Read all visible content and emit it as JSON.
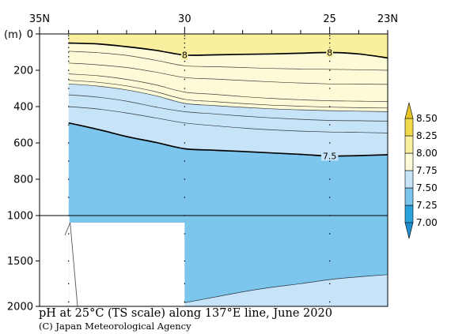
{
  "caption": {
    "title": "pH at 25°C (TS scale) along 137°E line, June 2020",
    "credit": "(C) Japan Meteorological Agency"
  },
  "chart_data": {
    "type": "contour",
    "title": "pH at 25°C (TS scale) along 137°E line, June 2020",
    "x_axis": {
      "quantity": "latitude",
      "range": [
        "35N",
        "23N"
      ],
      "range_values": [
        35,
        23
      ],
      "ticks": [
        {
          "label": "35N",
          "value": 35
        },
        {
          "label": "30",
          "value": 30
        },
        {
          "label": "25",
          "value": 25
        },
        {
          "label": "23N",
          "value": 23
        }
      ]
    },
    "y_axis": {
      "unit_label": "(m)",
      "range": [
        0,
        2000
      ],
      "upper_segment": {
        "range": [
          0,
          1000
        ],
        "ticks": [
          0,
          200,
          400,
          600,
          800,
          1000
        ]
      },
      "lower_segment": {
        "range": [
          1000,
          2000
        ],
        "ticks": [
          1500,
          2000
        ]
      }
    },
    "station_latitudes": [
      34,
      30,
      25
    ],
    "contour_interval": 0.05,
    "contours": [
      {
        "level": 8.0,
        "label": "8",
        "bold": true,
        "points": [
          [
            34,
            50
          ],
          [
            33,
            55
          ],
          [
            32,
            70
          ],
          [
            31,
            90
          ],
          [
            30,
            116
          ],
          [
            29,
            115
          ],
          [
            28,
            112
          ],
          [
            27,
            110
          ],
          [
            26,
            106
          ],
          [
            25,
            102
          ],
          [
            24,
            110
          ],
          [
            23,
            132
          ]
        ]
      },
      {
        "level": 7.95,
        "bold": false,
        "points": [
          [
            34,
            95
          ],
          [
            33,
            103
          ],
          [
            32,
            118
          ],
          [
            31,
            145
          ],
          [
            30,
            175
          ],
          [
            29,
            180
          ],
          [
            28,
            185
          ],
          [
            27,
            190
          ],
          [
            26,
            193
          ],
          [
            25,
            195
          ],
          [
            24,
            197
          ],
          [
            23,
            200
          ]
        ]
      },
      {
        "level": 7.9,
        "bold": false,
        "points": [
          [
            34,
            160
          ],
          [
            33,
            170
          ],
          [
            32,
            185
          ],
          [
            31,
            210
          ],
          [
            30,
            240
          ],
          [
            29,
            248
          ],
          [
            28,
            256
          ],
          [
            27,
            264
          ],
          [
            26,
            270
          ],
          [
            25,
            275
          ],
          [
            24,
            276
          ],
          [
            23,
            278
          ]
        ]
      },
      {
        "level": 7.85,
        "bold": false,
        "points": [
          [
            34,
            220
          ],
          [
            33,
            230
          ],
          [
            32,
            250
          ],
          [
            31,
            280
          ],
          [
            30,
            320
          ],
          [
            29,
            332
          ],
          [
            28,
            345
          ],
          [
            27,
            355
          ],
          [
            26,
            362
          ],
          [
            25,
            368
          ],
          [
            24,
            370
          ],
          [
            23,
            372
          ]
        ]
      },
      {
        "level": 7.8,
        "bold": false,
        "points": [
          [
            34,
            255
          ],
          [
            33,
            266
          ],
          [
            32,
            286
          ],
          [
            31,
            318
          ],
          [
            30,
            360
          ],
          [
            29,
            372
          ],
          [
            28,
            383
          ],
          [
            27,
            392
          ],
          [
            26,
            398
          ],
          [
            25,
            403
          ],
          [
            24,
            406
          ],
          [
            23,
            408
          ]
        ]
      },
      {
        "level": 7.75,
        "bold": false,
        "points": [
          [
            34,
            275
          ],
          [
            33,
            287
          ],
          [
            32,
            308
          ],
          [
            31,
            340
          ],
          [
            30,
            382
          ],
          [
            29,
            394
          ],
          [
            28,
            404
          ],
          [
            27,
            412
          ],
          [
            26,
            418
          ],
          [
            25,
            422
          ],
          [
            24,
            425
          ],
          [
            23,
            428
          ]
        ]
      },
      {
        "level": 7.7,
        "bold": false,
        "points": [
          [
            34,
            335
          ],
          [
            33,
            348
          ],
          [
            32,
            370
          ],
          [
            31,
            402
          ],
          [
            30,
            428
          ],
          [
            29,
            440
          ],
          [
            28,
            452
          ],
          [
            27,
            462
          ],
          [
            26,
            470
          ],
          [
            25,
            476
          ],
          [
            24,
            478
          ],
          [
            23,
            480
          ]
        ]
      },
      {
        "level": 7.65,
        "bold": false,
        "points": [
          [
            34,
            400
          ],
          [
            33,
            413
          ],
          [
            32,
            435
          ],
          [
            31,
            462
          ],
          [
            30,
            490
          ],
          [
            29,
            505
          ],
          [
            28,
            518
          ],
          [
            27,
            528
          ],
          [
            26,
            535
          ],
          [
            25,
            540
          ],
          [
            24,
            542
          ],
          [
            23,
            545
          ]
        ]
      },
      {
        "level": 7.5,
        "label": "7.5",
        "bold": true,
        "points": [
          [
            34,
            490
          ],
          [
            33,
            525
          ],
          [
            32,
            565
          ],
          [
            31,
            597
          ],
          [
            30,
            632
          ],
          [
            29,
            640
          ],
          [
            28,
            647
          ],
          [
            27,
            655
          ],
          [
            26,
            663
          ],
          [
            25,
            672
          ],
          [
            24,
            670
          ],
          [
            23,
            665
          ]
        ]
      },
      {
        "level": 7.45,
        "bold": false,
        "points": [
          [
            30,
            1960
          ],
          [
            29,
            1900
          ],
          [
            28,
            1840
          ],
          [
            27,
            1790
          ],
          [
            26,
            1750
          ],
          [
            25,
            1705
          ],
          [
            24,
            1675
          ],
          [
            23,
            1650
          ]
        ]
      }
    ],
    "colorbar": {
      "levels": [
        "7.00",
        "7.25",
        "7.50",
        "7.75",
        "8.00",
        "8.25",
        "8.50"
      ],
      "level_values": [
        7.0,
        7.25,
        7.5,
        7.75,
        8.0,
        8.25,
        8.5
      ],
      "bands": [
        {
          "range": [
            6.75,
            7.0
          ],
          "color": "#1f8fd0"
        },
        {
          "range": [
            7.0,
            7.25
          ],
          "color": "#2aa3dd"
        },
        {
          "range": [
            7.25,
            7.5
          ],
          "color": "#7cc6ee"
        },
        {
          "range": [
            7.5,
            7.75
          ],
          "color": "#c6e3f7"
        },
        {
          "range": [
            7.75,
            8.0
          ],
          "color": "#fdfad8"
        },
        {
          "range": [
            8.0,
            8.25
          ],
          "color": "#f9ef9e"
        },
        {
          "range": [
            8.25,
            8.5
          ],
          "color": "#f0da4c"
        },
        {
          "range": [
            8.5,
            8.75
          ],
          "color": "#e5c428"
        }
      ],
      "extends": "both"
    },
    "no_data": {
      "fill": "#ffffff"
    },
    "grid": false,
    "legend_position": "right"
  }
}
